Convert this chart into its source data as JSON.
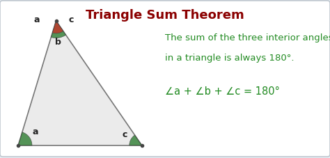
{
  "title": "Triangle Sum Theorem",
  "title_color": "#8B0000",
  "title_fontsize": 13,
  "bg_color": "#e8eef4",
  "panel_color": "#ffffff",
  "description_line1": "The sum of the three interior angles",
  "description_line2": "in a triangle is always 180°.",
  "description_color": "#228B22",
  "description_fontsize": 9.5,
  "equation": "∠a + ∠b + ∠c = 180°",
  "equation_color": "#228B22",
  "equation_fontsize": 10.5,
  "triangle_fill": "#ebebeb",
  "triangle_edge": "#777777",
  "angle_a_color": "#2e7d32",
  "angle_b_color": "#c0392b",
  "angle_c_color": "#2e7d32",
  "label_color": "#222222",
  "label_fontsize": 9
}
